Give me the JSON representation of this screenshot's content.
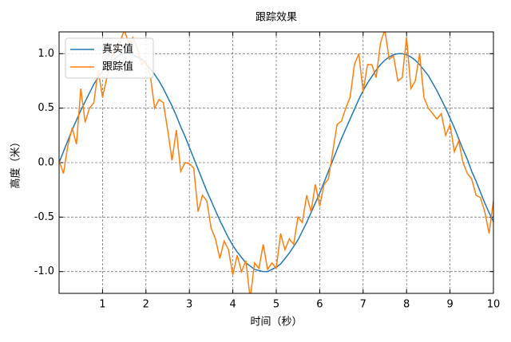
{
  "chart_data": {
    "type": "line",
    "title": "跟踪效果",
    "xlabel": "时间（秒）",
    "ylabel": "高度（米）",
    "x": [
      0,
      0.1,
      0.2,
      0.3,
      0.4,
      0.5,
      0.6,
      0.7,
      0.8,
      0.9,
      1,
      1.1,
      1.2,
      1.3,
      1.4,
      1.5,
      1.6,
      1.7,
      1.8,
      1.9,
      2,
      2.1,
      2.2,
      2.3,
      2.4,
      2.5,
      2.6,
      2.7,
      2.8,
      2.9,
      3,
      3.1,
      3.2,
      3.3,
      3.4,
      3.5,
      3.6,
      3.7,
      3.8,
      3.9,
      4,
      4.1,
      4.2,
      4.3,
      4.4,
      4.5,
      4.6,
      4.7,
      4.8,
      4.9,
      5,
      5.1,
      5.2,
      5.3,
      5.4,
      5.5,
      5.6,
      5.7,
      5.8,
      5.9,
      6,
      6.1,
      6.2,
      6.3,
      6.4,
      6.5,
      6.6,
      6.7,
      6.8,
      6.9,
      7,
      7.1,
      7.2,
      7.3,
      7.4,
      7.5,
      7.6,
      7.7,
      7.8,
      7.9,
      8,
      8.1,
      8.2,
      8.3,
      8.4,
      8.5,
      8.6,
      8.7,
      8.8,
      8.9,
      9,
      9.1,
      9.2,
      9.3,
      9.4,
      9.5,
      9.6,
      9.7,
      9.8,
      9.9,
      10
    ],
    "series": [
      {
        "name": "真实值",
        "color": "#1f77b4",
        "values": [
          0,
          0.1,
          0.2,
          0.3,
          0.39,
          0.48,
          0.56,
          0.64,
          0.72,
          0.78,
          0.84,
          0.89,
          0.93,
          0.96,
          0.99,
          1,
          1,
          0.99,
          0.97,
          0.95,
          0.91,
          0.86,
          0.81,
          0.75,
          0.68,
          0.6,
          0.52,
          0.43,
          0.33,
          0.24,
          0.14,
          0.04,
          -0.06,
          -0.16,
          -0.26,
          -0.35,
          -0.44,
          -0.53,
          -0.61,
          -0.69,
          -0.76,
          -0.82,
          -0.87,
          -0.92,
          -0.95,
          -0.98,
          -0.99,
          -1,
          -1,
          -0.98,
          -0.96,
          -0.93,
          -0.88,
          -0.83,
          -0.77,
          -0.71,
          -0.63,
          -0.55,
          -0.46,
          -0.37,
          -0.28,
          -0.18,
          -0.08,
          0.02,
          0.12,
          0.22,
          0.31,
          0.4,
          0.49,
          0.58,
          0.66,
          0.73,
          0.79,
          0.85,
          0.9,
          0.94,
          0.97,
          0.99,
          1,
          1,
          0.99,
          0.97,
          0.94,
          0.9,
          0.85,
          0.8,
          0.73,
          0.66,
          0.58,
          0.5,
          0.41,
          0.32,
          0.22,
          0.12,
          0.03,
          -0.08,
          -0.17,
          -0.27,
          -0.37,
          -0.46,
          -0.54
        ]
      },
      {
        "name": "跟踪值",
        "color": "#ff7f0e",
        "values": [
          0.02,
          -0.1,
          0.15,
          0.32,
          0.17,
          0.68,
          0.37,
          0.5,
          0.55,
          0.85,
          0.6,
          0.78,
          0.95,
          1.05,
          1.1,
          1.22,
          1.1,
          1.15,
          1.05,
          0.9,
          0.93,
          0.8,
          0.5,
          0.58,
          0.55,
          0.3,
          0.02,
          0.3,
          -0.08,
          0,
          -0.01,
          -0.05,
          -0.45,
          -0.3,
          -0.35,
          -0.6,
          -0.7,
          -0.88,
          -0.72,
          -0.8,
          -1.03,
          -0.85,
          -1.0,
          -0.9,
          -1.25,
          -0.92,
          -0.97,
          -0.75,
          -0.98,
          -0.92,
          -0.97,
          -0.65,
          -0.8,
          -0.7,
          -0.75,
          -0.5,
          -0.55,
          -0.3,
          -0.45,
          -0.2,
          -0.4,
          -0.2,
          -0.15,
          0.1,
          0.35,
          0.38,
          0.5,
          0.6,
          0.9,
          1.0,
          0.65,
          0.9,
          0.9,
          0.78,
          1.1,
          1.22,
          0.95,
          0.98,
          0.75,
          0.78,
          1.15,
          0.68,
          0.75,
          1.0,
          0.6,
          0.5,
          0.45,
          0.4,
          0.45,
          0.25,
          0.35,
          0.1,
          0.2,
          0.0,
          -0.1,
          -0.15,
          -0.3,
          -0.32,
          -0.45,
          -0.65,
          -0.35
        ]
      }
    ],
    "xlim": [
      0,
      10
    ],
    "xticks": [
      1,
      2,
      3,
      4,
      5,
      6,
      7,
      8,
      9,
      10
    ],
    "ylim": [
      -1.2,
      1.2
    ],
    "yticks": [
      {
        "value": -1,
        "label": "-1.0"
      },
      -0.5,
      {
        "value": 0,
        "label": "0.0"
      },
      0.5,
      {
        "value": 1,
        "label": "1.0"
      }
    ],
    "grid": true,
    "legend": "upper-left"
  }
}
